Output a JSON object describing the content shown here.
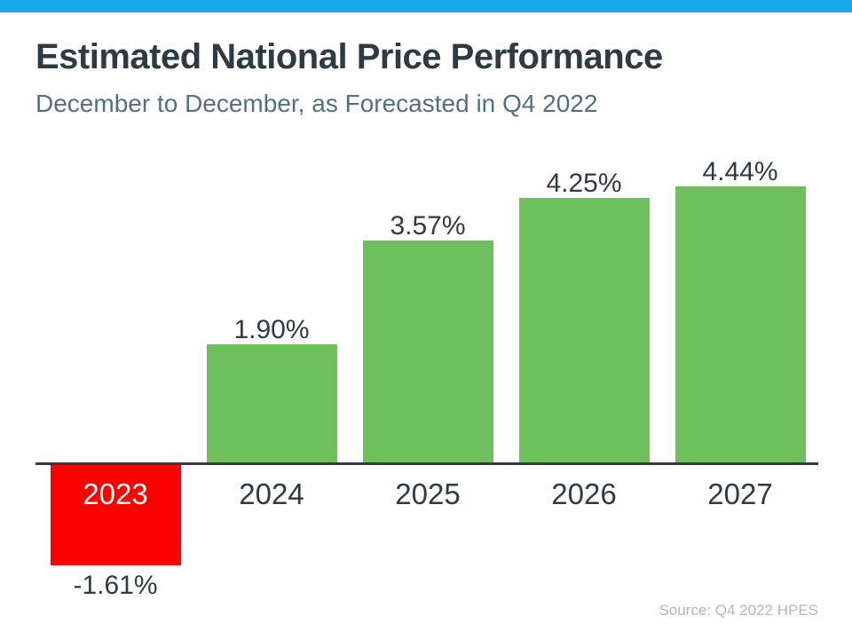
{
  "accent": {
    "topbar_color": "#18a9ec"
  },
  "header": {
    "title": "Estimated National Price Performance",
    "subtitle": "December to December, as Forecasted in Q4 2022"
  },
  "footer": {
    "source": "Source: Q4 2022 HPES"
  },
  "chart_data": {
    "type": "bar",
    "title": "Estimated National Price Performance",
    "subtitle": "December to December, as Forecasted in Q4 2022",
    "categories": [
      "2023",
      "2024",
      "2025",
      "2026",
      "2027"
    ],
    "values": [
      -1.61,
      1.9,
      3.57,
      4.25,
      4.44
    ],
    "labels": [
      "-1.61%",
      "1.90%",
      "3.57%",
      "4.25%",
      "4.44%"
    ],
    "xlabel": "",
    "ylabel": "",
    "ylim": [
      -2,
      5
    ],
    "grid": false,
    "legend": "none",
    "positive_color": "#6dc05c",
    "negative_color": "#fd0000",
    "axis_color": "#2e3b43",
    "label_color": "#2e3b43",
    "negative_category_text_color": "#ffffff",
    "source": "Source: Q4 2022 HPES"
  }
}
